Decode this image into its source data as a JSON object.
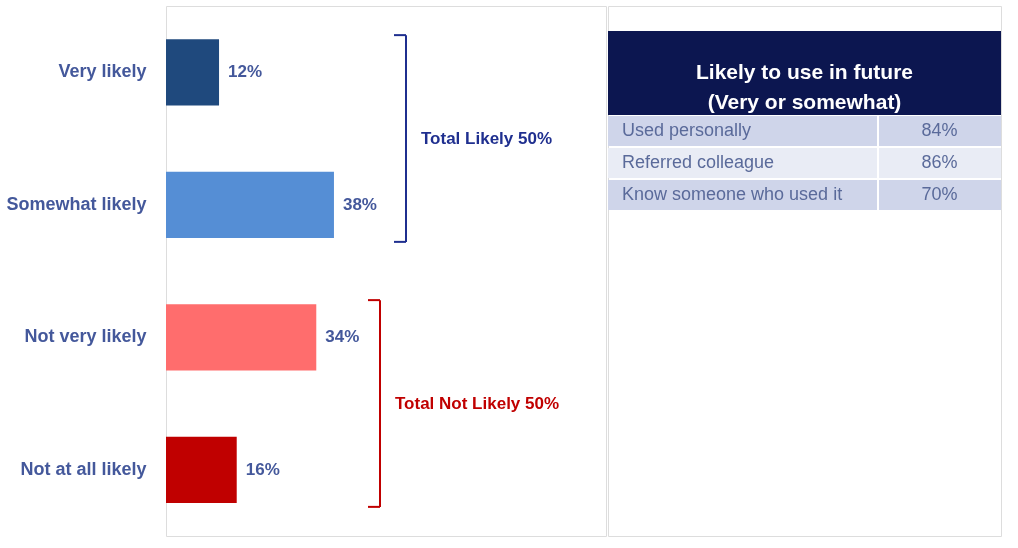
{
  "chart_data": [
    {
      "type": "bar",
      "orientation": "horizontal",
      "categories": [
        "Very likely",
        "Somewhat likely",
        "Not very likely",
        "Not at all likely"
      ],
      "values": [
        12,
        38,
        34,
        16
      ],
      "colors": [
        "#1f497d",
        "#558ed5",
        "#ff6d6d",
        "#c00000"
      ],
      "value_labels": [
        "12%",
        "38%",
        "34%",
        "16%"
      ],
      "annotations": [
        "Total Likely 50%",
        "Total Not Likely 50%"
      ]
    },
    {
      "type": "other",
      "title": "Likely to use in future\n(Very or somewhat)",
      "categories": [
        "Used personally",
        "Referred colleague",
        "Know someone who used it"
      ],
      "values": [
        84,
        86,
        70
      ],
      "value_labels": [
        "84%",
        "86%",
        "70%"
      ]
    }
  ]
}
